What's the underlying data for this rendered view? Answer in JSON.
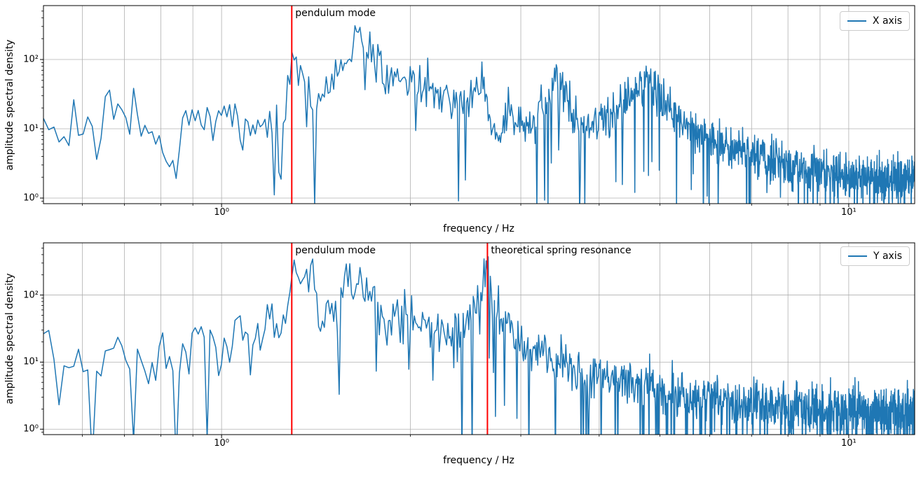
{
  "colors": {
    "series_line": "#1f77b4",
    "vline": "#ff0000",
    "grid": "#b0b0b0",
    "spine": "#000000",
    "legend_border": "#cccccc",
    "background": "#ffffff"
  },
  "chart_data": [
    {
      "type": "line",
      "subplot": "top",
      "xlabel": "frequency / Hz",
      "ylabel": "amplitude spectral density",
      "xscale": "log",
      "yscale": "log",
      "xlim": [
        0.52,
        12.74
      ],
      "ylim": [
        0.83,
        600
      ],
      "x_ticks": [
        {
          "value": 1,
          "label": "10⁰"
        },
        {
          "value": 10,
          "label": "10¹"
        }
      ],
      "y_ticks": [
        {
          "value": 1,
          "label": "10⁰"
        },
        {
          "value": 10,
          "label": "10¹"
        },
        {
          "value": 100,
          "label": "10²"
        }
      ],
      "grid": {
        "x": "major+minor",
        "y": "major"
      },
      "legend": {
        "label": "X axis",
        "position": "upper right"
      },
      "vlines": [
        {
          "x": 1.294,
          "label": "pendulum mode",
          "color": "#ff0000"
        }
      ],
      "series": [
        {
          "name": "X axis",
          "color": "#1f77b4",
          "df": 0.0102,
          "seed": 20,
          "noise_sigma": 0.3,
          "dip_probability": 0.05,
          "dip_depth": [
            0.4,
            1.2
          ],
          "envelope_points": [
            [
              0.52,
              12
            ],
            [
              0.56,
              8
            ],
            [
              0.6,
              14
            ],
            [
              0.63,
              6
            ],
            [
              0.66,
              30
            ],
            [
              0.7,
              11
            ],
            [
              0.73,
              20
            ],
            [
              0.76,
              8
            ],
            [
              0.8,
              10
            ],
            [
              0.84,
              2
            ],
            [
              0.87,
              12
            ],
            [
              0.9,
              17
            ],
            [
              0.94,
              9
            ],
            [
              0.98,
              12
            ],
            [
              1.03,
              14
            ],
            [
              1.08,
              9
            ],
            [
              1.13,
              12
            ],
            [
              1.18,
              9
            ],
            [
              1.22,
              15
            ],
            [
              1.26,
              20
            ],
            [
              1.29,
              55
            ],
            [
              1.31,
              95
            ],
            [
              1.33,
              70
            ],
            [
              1.36,
              45
            ],
            [
              1.39,
              22
            ],
            [
              1.43,
              30
            ],
            [
              1.47,
              40
            ],
            [
              1.52,
              55
            ],
            [
              1.56,
              75
            ],
            [
              1.59,
              110
            ],
            [
              1.61,
              160
            ],
            [
              1.63,
              290
            ],
            [
              1.65,
              190
            ],
            [
              1.68,
              120
            ],
            [
              1.71,
              95
            ],
            [
              1.74,
              130
            ],
            [
              1.78,
              90
            ],
            [
              1.82,
              70
            ],
            [
              1.87,
              60
            ],
            [
              1.92,
              65
            ],
            [
              1.97,
              50
            ],
            [
              2.02,
              55
            ],
            [
              2.08,
              45
            ],
            [
              2.14,
              38
            ],
            [
              2.22,
              32
            ],
            [
              2.3,
              28
            ],
            [
              2.4,
              24
            ],
            [
              2.5,
              30
            ],
            [
              2.57,
              45
            ],
            [
              2.61,
              55
            ],
            [
              2.65,
              30
            ],
            [
              2.69,
              10
            ],
            [
              2.74,
              7
            ],
            [
              2.8,
              14
            ],
            [
              2.87,
              18
            ],
            [
              2.94,
              12
            ],
            [
              3.02,
              15
            ],
            [
              3.1,
              12
            ],
            [
              3.2,
              18
            ],
            [
              3.3,
              30
            ],
            [
              3.4,
              48
            ],
            [
              3.47,
              40
            ],
            [
              3.55,
              25
            ],
            [
              3.65,
              14
            ],
            [
              3.78,
              11
            ],
            [
              3.92,
              12
            ],
            [
              4.08,
              14
            ],
            [
              4.25,
              18
            ],
            [
              4.42,
              26
            ],
            [
              4.6,
              38
            ],
            [
              4.73,
              52
            ],
            [
              4.87,
              42
            ],
            [
              5.0,
              32
            ],
            [
              5.15,
              22
            ],
            [
              5.35,
              15
            ],
            [
              5.58,
              11
            ],
            [
              5.85,
              8
            ],
            [
              6.15,
              6.5
            ],
            [
              6.5,
              5.5
            ],
            [
              6.9,
              4.5
            ],
            [
              7.4,
              3.6
            ],
            [
              7.9,
              3.0
            ],
            [
              8.5,
              2.6
            ],
            [
              9.2,
              2.3
            ],
            [
              10.0,
              2.1
            ],
            [
              11.0,
              2.0
            ],
            [
              12.0,
              1.9
            ],
            [
              12.74,
              2.0
            ]
          ]
        }
      ]
    },
    {
      "type": "line",
      "subplot": "bottom",
      "xlabel": "frequency / Hz",
      "ylabel": "amplitude spectral density",
      "xscale": "log",
      "yscale": "log",
      "xlim": [
        0.52,
        12.74
      ],
      "ylim": [
        0.83,
        600
      ],
      "x_ticks": [
        {
          "value": 1,
          "label": "10⁰"
        },
        {
          "value": 10,
          "label": "10¹"
        }
      ],
      "y_ticks": [
        {
          "value": 1,
          "label": "10⁰"
        },
        {
          "value": 10,
          "label": "10¹"
        },
        {
          "value": 100,
          "label": "10²"
        }
      ],
      "grid": {
        "x": "major+minor",
        "y": "major"
      },
      "legend": {
        "label": "Y axis",
        "position": "upper right"
      },
      "vlines": [
        {
          "x": 1.294,
          "label": "pendulum mode",
          "color": "#ff0000"
        },
        {
          "x": 2.654,
          "label": "theoretical spring resonance",
          "color": "#ff0000"
        }
      ],
      "series": [
        {
          "name": "Y axis",
          "color": "#1f77b4",
          "df": 0.0102,
          "seed": 77,
          "noise_sigma": 0.36,
          "dip_probability": 0.09,
          "dip_depth": [
            0.5,
            1.4
          ],
          "envelope_points": [
            [
              0.52,
              35
            ],
            [
              0.55,
              10
            ],
            [
              0.58,
              22
            ],
            [
              0.62,
              5
            ],
            [
              0.66,
              16
            ],
            [
              0.7,
              19
            ],
            [
              0.74,
              9
            ],
            [
              0.78,
              13
            ],
            [
              0.82,
              15
            ],
            [
              0.86,
              7
            ],
            [
              0.9,
              18
            ],
            [
              0.95,
              28
            ],
            [
              1.0,
              12
            ],
            [
              1.05,
              32
            ],
            [
              1.1,
              15
            ],
            [
              1.15,
              26
            ],
            [
              1.2,
              48
            ],
            [
              1.24,
              28
            ],
            [
              1.27,
              70
            ],
            [
              1.29,
              190
            ],
            [
              1.31,
              310
            ],
            [
              1.33,
              160
            ],
            [
              1.36,
              90
            ],
            [
              1.39,
              170
            ],
            [
              1.42,
              100
            ],
            [
              1.46,
              45
            ],
            [
              1.51,
              55
            ],
            [
              1.55,
              85
            ],
            [
              1.59,
              150
            ],
            [
              1.63,
              210
            ],
            [
              1.66,
              130
            ],
            [
              1.7,
              85
            ],
            [
              1.74,
              115
            ],
            [
              1.79,
              65
            ],
            [
              1.84,
              45
            ],
            [
              1.89,
              55
            ],
            [
              1.94,
              38
            ],
            [
              1.99,
              48
            ],
            [
              2.05,
              32
            ],
            [
              2.12,
              38
            ],
            [
              2.2,
              28
            ],
            [
              2.3,
              32
            ],
            [
              2.4,
              24
            ],
            [
              2.5,
              38
            ],
            [
              2.57,
              70
            ],
            [
              2.62,
              160
            ],
            [
              2.65,
              340
            ],
            [
              2.68,
              160
            ],
            [
              2.72,
              75
            ],
            [
              2.77,
              48
            ],
            [
              2.84,
              32
            ],
            [
              2.92,
              26
            ],
            [
              3.0,
              22
            ],
            [
              3.1,
              17
            ],
            [
              3.22,
              13
            ],
            [
              3.36,
              11
            ],
            [
              3.52,
              9
            ],
            [
              3.7,
              7.5
            ],
            [
              3.9,
              6.5
            ],
            [
              4.15,
              5.5
            ],
            [
              4.45,
              5.0
            ],
            [
              4.8,
              4.2
            ],
            [
              5.2,
              3.6
            ],
            [
              5.65,
              3.1
            ],
            [
              6.15,
              2.8
            ],
            [
              6.7,
              2.5
            ],
            [
              7.3,
              2.3
            ],
            [
              8.0,
              2.1
            ],
            [
              8.8,
              2.0
            ],
            [
              9.7,
              1.9
            ],
            [
              10.7,
              1.85
            ],
            [
              11.7,
              1.8
            ],
            [
              12.74,
              1.8
            ]
          ]
        }
      ]
    }
  ]
}
